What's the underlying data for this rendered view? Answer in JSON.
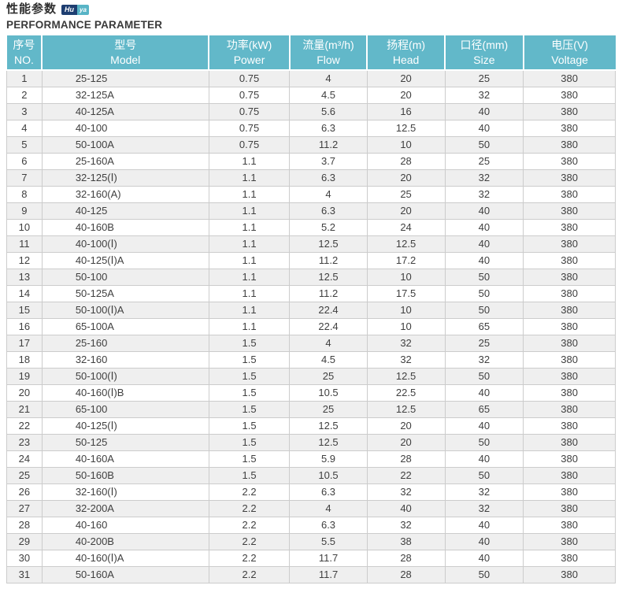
{
  "page": {
    "title_cn": "性能参数",
    "title_en": "PERFORMANCE PARAMETER",
    "logo": {
      "part1": "Hu",
      "part2": "ya"
    }
  },
  "colors": {
    "header_bg": "#62b8c9",
    "row_alt_bg": "#efefef",
    "border": "#cccccc",
    "logo_navy": "#1e3e71",
    "logo_teal": "#58b4c6"
  },
  "table": {
    "columns": [
      {
        "cn": "序号",
        "en": "NO."
      },
      {
        "cn": "型号",
        "en": "Model"
      },
      {
        "cn": "功率(kW)",
        "en": "Power"
      },
      {
        "cn": "流量(m³/h)",
        "en": "Flow"
      },
      {
        "cn": "扬程(m)",
        "en": "Head"
      },
      {
        "cn": "口径(mm)",
        "en": "Size"
      },
      {
        "cn": "电压(V)",
        "en": "Voltage"
      }
    ],
    "rows": [
      [
        "1",
        "25-125",
        "0.75",
        "4",
        "20",
        "25",
        "380"
      ],
      [
        "2",
        "32-125A",
        "0.75",
        "4.5",
        "20",
        "32",
        "380"
      ],
      [
        "3",
        "40-125A",
        "0.75",
        "5.6",
        "16",
        "40",
        "380"
      ],
      [
        "4",
        "40-100",
        "0.75",
        "6.3",
        "12.5",
        "40",
        "380"
      ],
      [
        "5",
        "50-100A",
        "0.75",
        "11.2",
        "10",
        "50",
        "380"
      ],
      [
        "6",
        "25-160A",
        "1.1",
        "3.7",
        "28",
        "25",
        "380"
      ],
      [
        "7",
        "32-125(Ⅰ)",
        "1.1",
        "6.3",
        "20",
        "32",
        "380"
      ],
      [
        "8",
        "32-160(A)",
        "1.1",
        "4",
        "25",
        "32",
        "380"
      ],
      [
        "9",
        "40-125",
        "1.1",
        "6.3",
        "20",
        "40",
        "380"
      ],
      [
        "10",
        "40-160B",
        "1.1",
        "5.2",
        "24",
        "40",
        "380"
      ],
      [
        "11",
        "40-100(Ⅰ)",
        "1.1",
        "12.5",
        "12.5",
        "40",
        "380"
      ],
      [
        "12",
        "40-125(Ⅰ)A",
        "1.1",
        "11.2",
        "17.2",
        "40",
        "380"
      ],
      [
        "13",
        "50-100",
        "1.1",
        "12.5",
        "10",
        "50",
        "380"
      ],
      [
        "14",
        "50-125A",
        "1.1",
        "11.2",
        "17.5",
        "50",
        "380"
      ],
      [
        "15",
        "50-100(Ⅰ)A",
        "1.1",
        "22.4",
        "10",
        "50",
        "380"
      ],
      [
        "16",
        "65-100A",
        "1.1",
        "22.4",
        "10",
        "65",
        "380"
      ],
      [
        "17",
        "25-160",
        "1.5",
        "4",
        "32",
        "25",
        "380"
      ],
      [
        "18",
        "32-160",
        "1.5",
        "4.5",
        "32",
        "32",
        "380"
      ],
      [
        "19",
        "50-100(Ⅰ)",
        "1.5",
        "25",
        "12.5",
        "50",
        "380"
      ],
      [
        "20",
        "40-160(Ⅰ)B",
        "1.5",
        "10.5",
        "22.5",
        "40",
        "380"
      ],
      [
        "21",
        "65-100",
        "1.5",
        "25",
        "12.5",
        "65",
        "380"
      ],
      [
        "22",
        "40-125(Ⅰ)",
        "1.5",
        "12.5",
        "20",
        "40",
        "380"
      ],
      [
        "23",
        "50-125",
        "1.5",
        "12.5",
        "20",
        "50",
        "380"
      ],
      [
        "24",
        "40-160A",
        "1.5",
        "5.9",
        "28",
        "40",
        "380"
      ],
      [
        "25",
        "50-160B",
        "1.5",
        "10.5",
        "22",
        "50",
        "380"
      ],
      [
        "26",
        "32-160(Ⅰ)",
        "2.2",
        "6.3",
        "32",
        "32",
        "380"
      ],
      [
        "27",
        "32-200A",
        "2.2",
        "4",
        "40",
        "32",
        "380"
      ],
      [
        "28",
        "40-160",
        "2.2",
        "6.3",
        "32",
        "40",
        "380"
      ],
      [
        "29",
        "40-200B",
        "2.2",
        "5.5",
        "38",
        "40",
        "380"
      ],
      [
        "30",
        "40-160(Ⅰ)A",
        "2.2",
        "11.7",
        "28",
        "40",
        "380"
      ],
      [
        "31",
        "50-160A",
        "2.2",
        "11.7",
        "28",
        "50",
        "380"
      ]
    ]
  }
}
